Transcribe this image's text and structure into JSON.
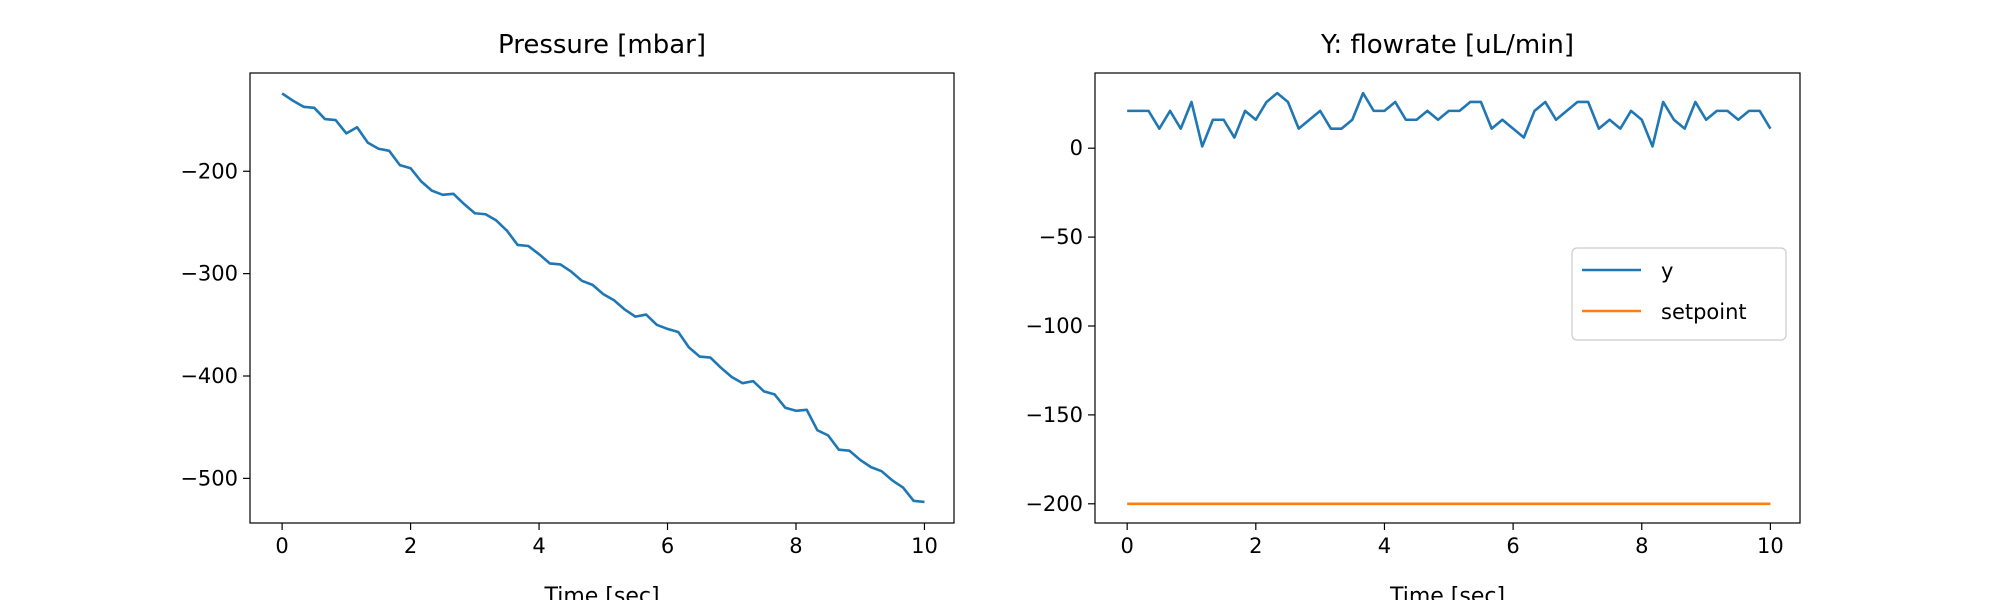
{
  "chart_data": [
    {
      "type": "line",
      "title": "Pressure [mbar]",
      "xlabel": "Time [sec]",
      "x": [
        0,
        0.167,
        0.333,
        0.5,
        0.667,
        0.833,
        1,
        1.167,
        1.333,
        1.5,
        1.667,
        1.833,
        2,
        2.167,
        2.333,
        2.5,
        2.667,
        2.833,
        3,
        3.167,
        3.333,
        3.5,
        3.667,
        3.833,
        4,
        4.167,
        4.333,
        4.5,
        4.667,
        4.833,
        5,
        5.167,
        5.333,
        5.5,
        5.667,
        5.833,
        6,
        6.167,
        6.333,
        6.5,
        6.667,
        6.833,
        7,
        7.167,
        7.333,
        7.5,
        7.667,
        7.833,
        8,
        8.167,
        8.333,
        8.5,
        8.667,
        8.833,
        9,
        9.167,
        9.333,
        9.5,
        9.667,
        9.833,
        10
      ],
      "series": [
        {
          "color": "#1f77b4",
          "values": [
            -124,
            -131,
            -137,
            -138,
            -149,
            -150,
            -163,
            -157,
            -172,
            -178,
            -180,
            -194,
            -197,
            -210,
            -219,
            -223,
            -222,
            -232,
            -241,
            -242,
            -248,
            -258,
            -272,
            -273,
            -281,
            -290,
            -291,
            -298,
            -307,
            -311,
            -320,
            -326,
            -335,
            -342,
            -340,
            -350,
            -354,
            -357,
            -372,
            -381,
            -382,
            -392,
            -401,
            -407,
            -405,
            -415,
            -418,
            -431,
            -434,
            -433,
            -453,
            -458,
            -472,
            -473,
            -482,
            -489,
            -493,
            -502,
            -509,
            -522,
            -523
          ]
        }
      ],
      "xlim": [
        -0.5,
        10.46
      ],
      "ylim": [
        -543.6,
        -104
      ],
      "xticks": [
        0,
        2,
        4,
        6,
        8,
        10
      ],
      "yticks": [
        {
          "value": -500,
          "label": "−500"
        },
        {
          "value": -400,
          "label": "−400"
        },
        {
          "value": -300,
          "label": "−300"
        },
        {
          "value": -200,
          "label": "−200"
        }
      ]
    },
    {
      "type": "line",
      "title": "Y: flowrate [uL/min]",
      "xlabel": "Time [sec]",
      "x": [
        0,
        0.167,
        0.333,
        0.5,
        0.667,
        0.833,
        1,
        1.167,
        1.333,
        1.5,
        1.667,
        1.833,
        2,
        2.167,
        2.333,
        2.5,
        2.667,
        2.833,
        3,
        3.167,
        3.333,
        3.5,
        3.667,
        3.833,
        4,
        4.167,
        4.333,
        4.5,
        4.667,
        4.833,
        5,
        5.167,
        5.333,
        5.5,
        5.667,
        5.833,
        6,
        6.167,
        6.333,
        6.5,
        6.667,
        6.833,
        7,
        7.167,
        7.333,
        7.5,
        7.667,
        7.833,
        8,
        8.167,
        8.333,
        8.5,
        8.667,
        8.833,
        9,
        9.167,
        9.333,
        9.5,
        9.667,
        9.833,
        10
      ],
      "series": [
        {
          "name": "y",
          "color": "#1f77b4",
          "values": [
            21,
            21,
            21,
            11,
            21,
            11,
            26,
            1,
            16,
            16,
            6,
            21,
            16,
            26,
            31,
            26,
            11,
            16,
            21,
            11,
            11,
            16,
            31,
            21,
            21,
            26,
            16,
            16,
            21,
            16,
            21,
            21,
            26,
            26,
            11,
            16,
            11,
            6,
            21,
            26,
            16,
            21,
            26,
            26,
            11,
            16,
            11,
            21,
            16,
            1,
            26,
            16,
            11,
            26,
            16,
            21,
            21,
            16,
            21,
            21,
            11
          ]
        },
        {
          "name": "setpoint",
          "color": "#ff7f0e",
          "values": [
            -200,
            -200,
            -200,
            -200,
            -200,
            -200,
            -200,
            -200,
            -200,
            -200,
            -200,
            -200,
            -200,
            -200,
            -200,
            -200,
            -200,
            -200,
            -200,
            -200,
            -200,
            -200,
            -200,
            -200,
            -200,
            -200,
            -200,
            -200,
            -200,
            -200,
            -200,
            -200,
            -200,
            -200,
            -200,
            -200,
            -200,
            -200,
            -200,
            -200,
            -200,
            -200,
            -200,
            -200,
            -200,
            -200,
            -200,
            -200,
            -200,
            -200,
            -200,
            -200,
            -200,
            -200,
            -200,
            -200,
            -200,
            -200,
            -200,
            -200,
            -200
          ]
        }
      ],
      "xlim": [
        -0.5,
        10.46
      ],
      "ylim": [
        -210.8,
        42.3
      ],
      "xticks": [
        0,
        2,
        4,
        6,
        8,
        10
      ],
      "yticks": [
        {
          "value": -200,
          "label": "−200"
        },
        {
          "value": -150,
          "label": "−150"
        },
        {
          "value": -100,
          "label": "−100"
        },
        {
          "value": -50,
          "label": "−50"
        },
        0
      ],
      "legend": "center right"
    }
  ]
}
